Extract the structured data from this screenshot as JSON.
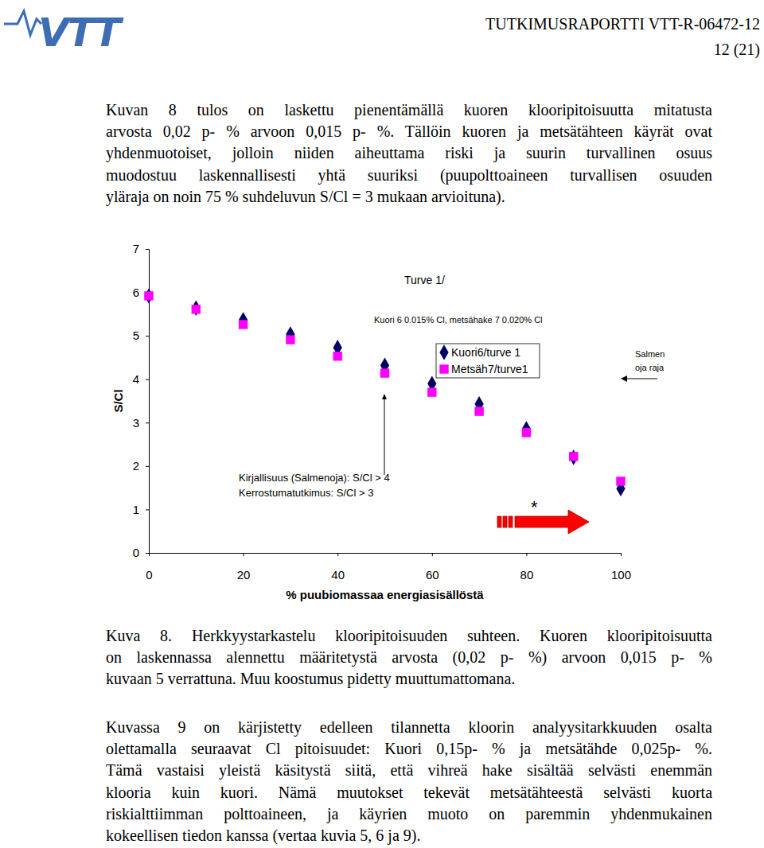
{
  "header": {
    "logo": "VTT",
    "report": "TUTKIMUSRAPORTTI VTT-R-06472-12",
    "page": "12 (21)"
  },
  "paragraph_1": [
    "Kuvan 8 tulos on laskettu pienentämällä kuoren klooripitoisuutta mitatusta",
    "arvosta 0,02 p- % arvoon 0,015 p- %. Tällöin kuoren ja metsätähteen käyrät ovat",
    "yhdenmuotoiset, jolloin niiden aiheuttama riski ja suurin turvallinen osuus",
    "muodostuu laskennallisesti yhtä suuriksi (puupolttoaineen turvallisen osuuden",
    "yläraja on noin 75 % suhdeluvun S/Cl = 3 mukaan arvioituna)."
  ],
  "chart_data": {
    "type": "scatter",
    "x_label": "% puubiomassaa energiasisällöstä",
    "y_label": "S/Cl",
    "x": [
      0,
      10,
      20,
      30,
      40,
      50,
      60,
      70,
      80,
      90,
      100
    ],
    "series": [
      {
        "name": "Kuori6/turve 1",
        "color": "#000066",
        "marker": "diamond",
        "values": [
          5.92,
          5.64,
          5.37,
          5.04,
          4.73,
          4.32,
          3.9,
          3.43,
          2.86,
          2.2,
          1.48
        ]
      },
      {
        "name": "Metsäh7/turve1",
        "color": "#ff00ff",
        "marker": "square",
        "values": [
          5.92,
          5.61,
          5.26,
          4.91,
          4.53,
          4.14,
          3.7,
          3.26,
          2.77,
          2.22,
          1.65
        ]
      }
    ],
    "xlim": [
      0,
      100
    ],
    "ylim": [
      0,
      7
    ],
    "xticks": [
      0,
      20,
      40,
      60,
      80,
      100
    ],
    "yticks": [
      0,
      1,
      2,
      3,
      4,
      5,
      6,
      7
    ],
    "legend": "center",
    "grid": false,
    "annotations": [
      "Turve 1/",
      "Kuori 6 0.015% Cl, metsähake 7 0.020% Cl",
      "Salmen",
      "oja raja",
      "Kirjallisuus (Salmenoja): S/Cl > 4",
      "Kerrostumatutkimus: S/Cl > 3",
      "*"
    ]
  },
  "caption": [
    "Kuva 8. Herkkyystarkastelu klooripitoisuuden suhteen. Kuoren klooripitoisuutta",
    "on laskennassa alennettu määritetystä arvosta (0,02 p- %) arvoon 0,015 p- %",
    "kuvaan 5 verrattuna. Muu koostumus pidetty muuttumattomana."
  ],
  "paragraph_2": [
    "Kuvassa 9 on kärjistetty edelleen tilannetta kloorin analyysitarkkuuden osalta",
    "olettamalla seuraavat Cl pitoisuudet: Kuori 0,15p- % ja metsätähde 0,025p- %.",
    "Tämä vastaisi yleistä käsitystä siitä, että vihreä hake sisältää selvästi enemmän",
    "klooria kuin kuori. Nämä muutokset tekevät metsätähteestä selvästi kuorta",
    "riskialttiimman polttoaineen, ja käyrien muoto on paremmin yhdenmukainen",
    "kokeellisen tiedon kanssa (vertaa kuvia 5, 6 ja 9)."
  ]
}
